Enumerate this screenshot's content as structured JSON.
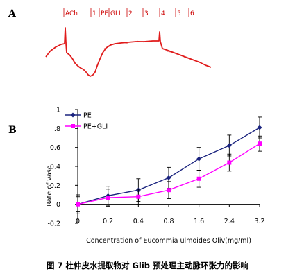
{
  "panel_a": {
    "label": "A",
    "markers": [
      "ACh",
      "1",
      "PE",
      "GLI",
      "2",
      "3",
      "4",
      "5",
      "6"
    ]
  },
  "panel_b": {
    "label": "B"
  },
  "chart_data": {
    "type": "line",
    "categories": [
      "0",
      "0.2",
      "0.4",
      "0.8",
      "1.6",
      "2.4",
      "3.2"
    ],
    "xlabel": "Concentration of Eucommia ulmoides Oliv(mg/ml)",
    "ylabel": "Rate of vaso",
    "ylim": [
      -0.2,
      1.0
    ],
    "yticks": [
      -0.2,
      0,
      0.2,
      0.4,
      0.6,
      0.8,
      1
    ],
    "ytick_labels": [
      "-0.2",
      "0",
      "0.2",
      "0.4",
      "0.6",
      ".8",
      "1"
    ],
    "legend_position": "top-left",
    "grid": false,
    "series": [
      {
        "name": "PE",
        "color": "#1a237e",
        "marker": "diamond",
        "values": [
          0.0,
          0.09,
          0.15,
          0.28,
          0.48,
          0.62,
          0.81
        ],
        "errors": [
          0.1,
          0.1,
          0.12,
          0.11,
          0.12,
          0.11,
          0.11
        ]
      },
      {
        "name": "PE+GLI",
        "color": "#ff00ff",
        "marker": "square",
        "values": [
          0.0,
          0.07,
          0.08,
          0.15,
          0.27,
          0.44,
          0.64
        ],
        "errors": [
          0.08,
          0.09,
          0.08,
          0.09,
          0.09,
          0.09,
          0.08
        ]
      }
    ]
  },
  "caption": "图 7 杜仲皮水提取物对 Glib 预处理主动脉环张力的影响"
}
